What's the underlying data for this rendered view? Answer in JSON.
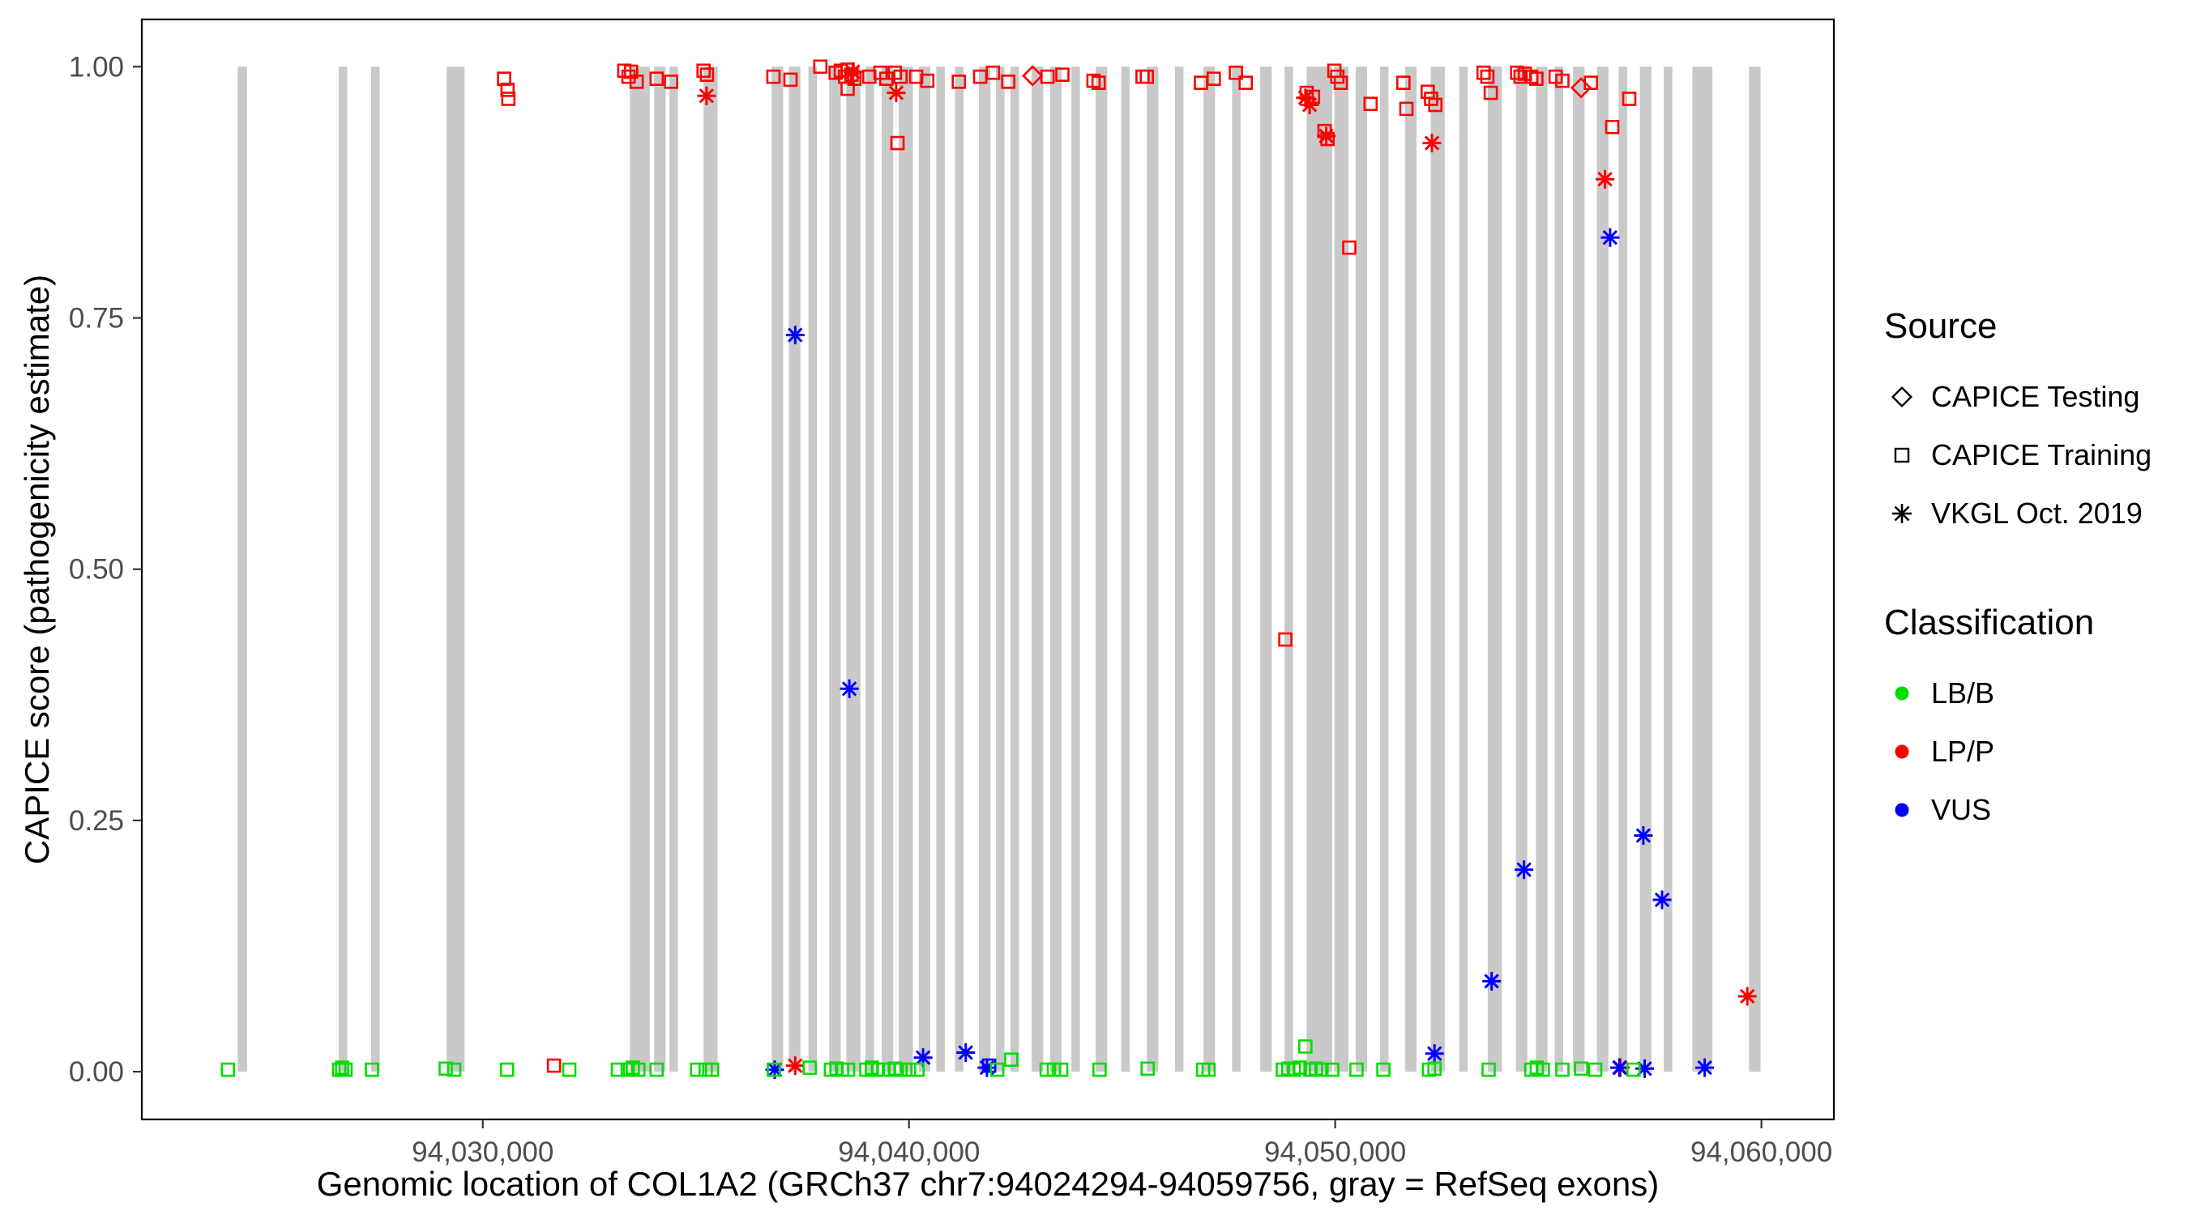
{
  "chart_data": {
    "type": "scatter",
    "title": "",
    "xlabel": "Genomic location of COL1A2 (GRCh37 chr7:94024294-94059756, gray = RefSeq exons)",
    "ylabel": "CAPICE score (pathogenicity estimate)",
    "x_domain": [
      94022000,
      94061700
    ],
    "y_domain": [
      -0.0475,
      1.047
    ],
    "x_ticks": [
      {
        "value": 94030000,
        "label": "94,030,000"
      },
      {
        "value": 94040000,
        "label": "94,040,000"
      },
      {
        "value": 94050000,
        "label": "94,050,000"
      },
      {
        "value": 94060000,
        "label": "94,060,000"
      }
    ],
    "y_ticks": [
      {
        "value": 0.0,
        "label": "0.00"
      },
      {
        "value": 0.25,
        "label": "0.25"
      },
      {
        "value": 0.5,
        "label": "0.50"
      },
      {
        "value": 0.75,
        "label": "0.75"
      },
      {
        "value": 1.0,
        "label": "1.00"
      }
    ],
    "grid": false,
    "legend_position": "right",
    "background": "#ffffff",
    "exon_color": "#c9c9c9",
    "classification_colors": {
      "LB/B": "#00dd00",
      "LP/P": "#ff0000",
      "VUS": "#0000ff"
    },
    "class_codes": {
      "B": "LB/B",
      "P": "LP/P",
      "U": "VUS"
    },
    "source_codes": {
      "T": "CAPICE Testing",
      "R": "CAPICE Training",
      "V": "VKGL Oct. 2019"
    },
    "source_shapes": {
      "CAPICE Testing": "diamond",
      "CAPICE Training": "square",
      "VKGL Oct. 2019": "asterisk"
    },
    "exons": [
      [
        94024250,
        220
      ],
      [
        94026620,
        200
      ],
      [
        94027380,
        200
      ],
      [
        94029150,
        420
      ],
      [
        94033450,
        470
      ],
      [
        94034020,
        270
      ],
      [
        94034380,
        200
      ],
      [
        94035180,
        330
      ],
      [
        94036780,
        270
      ],
      [
        94037180,
        270
      ],
      [
        94037640,
        200
      ],
      [
        94038130,
        270
      ],
      [
        94038530,
        330
      ],
      [
        94038980,
        200
      ],
      [
        94039360,
        270
      ],
      [
        94039760,
        330
      ],
      [
        94040230,
        270
      ],
      [
        94040640,
        200
      ],
      [
        94041080,
        200
      ],
      [
        94041640,
        270
      ],
      [
        94042040,
        200
      ],
      [
        94042380,
        200
      ],
      [
        94042880,
        270
      ],
      [
        94043310,
        270
      ],
      [
        94043810,
        200
      ],
      [
        94044380,
        270
      ],
      [
        94044980,
        200
      ],
      [
        94045580,
        270
      ],
      [
        94046240,
        200
      ],
      [
        94046910,
        270
      ],
      [
        94047580,
        200
      ],
      [
        94048240,
        270
      ],
      [
        94048810,
        200
      ],
      [
        94049330,
        600
      ],
      [
        94049980,
        330
      ],
      [
        94050480,
        270
      ],
      [
        94051050,
        200
      ],
      [
        94051640,
        270
      ],
      [
        94052240,
        330
      ],
      [
        94052910,
        200
      ],
      [
        94053580,
        330
      ],
      [
        94054240,
        270
      ],
      [
        94054710,
        270
      ],
      [
        94055150,
        200
      ],
      [
        94055580,
        270
      ],
      [
        94056140,
        270
      ],
      [
        94056650,
        200
      ],
      [
        94057150,
        270
      ],
      [
        94057710,
        200
      ],
      [
        94058380,
        470
      ],
      [
        94059710,
        270
      ]
    ],
    "points": [
      [
        94030500,
        0.988,
        "P",
        "R"
      ],
      [
        94030580,
        0.977,
        "P",
        "R"
      ],
      [
        94030600,
        0.968,
        "P",
        "R"
      ],
      [
        94033320,
        0.996,
        "P",
        "R"
      ],
      [
        94033420,
        0.99,
        "P",
        "R"
      ],
      [
        94033480,
        0.995,
        "P",
        "R"
      ],
      [
        94033610,
        0.985,
        "P",
        "R"
      ],
      [
        94034080,
        0.988,
        "P",
        "R"
      ],
      [
        94034420,
        0.985,
        "P",
        "R"
      ],
      [
        94035180,
        0.996,
        "P",
        "R"
      ],
      [
        94035260,
        0.992,
        "P",
        "R"
      ],
      [
        94036820,
        0.99,
        "P",
        "R"
      ],
      [
        94037220,
        0.987,
        "P",
        "R"
      ],
      [
        94037920,
        1.0,
        "P",
        "R"
      ],
      [
        94038280,
        0.994,
        "P",
        "R"
      ],
      [
        94038400,
        0.996,
        "P",
        "R"
      ],
      [
        94038500,
        0.99,
        "P",
        "R"
      ],
      [
        94038560,
        0.997,
        "P",
        "R"
      ],
      [
        94038650,
        0.992,
        "P",
        "R"
      ],
      [
        94038720,
        0.988,
        "P",
        "R"
      ],
      [
        94038560,
        0.978,
        "P",
        "R"
      ],
      [
        94039070,
        0.99,
        "P",
        "R"
      ],
      [
        94039330,
        0.994,
        "P",
        "R"
      ],
      [
        94039470,
        0.988,
        "P",
        "R"
      ],
      [
        94039670,
        0.994,
        "P",
        "R"
      ],
      [
        94039800,
        0.99,
        "P",
        "R"
      ],
      [
        94039730,
        0.924,
        "P",
        "R"
      ],
      [
        94040170,
        0.99,
        "P",
        "R"
      ],
      [
        94040430,
        0.986,
        "P",
        "R"
      ],
      [
        94041170,
        0.985,
        "P",
        "R"
      ],
      [
        94041670,
        0.99,
        "P",
        "R"
      ],
      [
        94041970,
        0.994,
        "P",
        "R"
      ],
      [
        94042330,
        0.985,
        "P",
        "R"
      ],
      [
        94043250,
        0.99,
        "P",
        "R"
      ],
      [
        94043600,
        0.992,
        "P",
        "R"
      ],
      [
        94044330,
        0.986,
        "P",
        "R"
      ],
      [
        94044450,
        0.984,
        "P",
        "R"
      ],
      [
        94045480,
        0.99,
        "P",
        "R"
      ],
      [
        94045580,
        0.99,
        "P",
        "R"
      ],
      [
        94046850,
        0.984,
        "P",
        "R"
      ],
      [
        94047150,
        0.988,
        "P",
        "R"
      ],
      [
        94047670,
        0.994,
        "P",
        "R"
      ],
      [
        94047900,
        0.984,
        "P",
        "R"
      ],
      [
        94048830,
        0.43,
        "P",
        "R"
      ],
      [
        94049330,
        0.974,
        "P",
        "R"
      ],
      [
        94049480,
        0.97,
        "P",
        "R"
      ],
      [
        94049750,
        0.936,
        "P",
        "R"
      ],
      [
        94049820,
        0.928,
        "P",
        "R"
      ],
      [
        94049980,
        0.996,
        "P",
        "R"
      ],
      [
        94050050,
        0.99,
        "P",
        "R"
      ],
      [
        94050130,
        0.984,
        "P",
        "R"
      ],
      [
        94050330,
        0.82,
        "P",
        "R"
      ],
      [
        94050830,
        0.963,
        "P",
        "R"
      ],
      [
        94051600,
        0.984,
        "P",
        "R"
      ],
      [
        94051670,
        0.958,
        "P",
        "R"
      ],
      [
        94052170,
        0.975,
        "P",
        "R"
      ],
      [
        94052250,
        0.968,
        "P",
        "R"
      ],
      [
        94052350,
        0.962,
        "P",
        "R"
      ],
      [
        94053480,
        0.994,
        "P",
        "R"
      ],
      [
        94053570,
        0.99,
        "P",
        "R"
      ],
      [
        94053650,
        0.974,
        "P",
        "R"
      ],
      [
        94054270,
        0.994,
        "P",
        "R"
      ],
      [
        94054350,
        0.99,
        "P",
        "R"
      ],
      [
        94054450,
        0.993,
        "P",
        "R"
      ],
      [
        94054600,
        0.99,
        "P",
        "R"
      ],
      [
        94054720,
        0.988,
        "P",
        "R"
      ],
      [
        94055170,
        0.99,
        "P",
        "R"
      ],
      [
        94055330,
        0.986,
        "P",
        "R"
      ],
      [
        94056000,
        0.984,
        "P",
        "R"
      ],
      [
        94056500,
        0.94,
        "P",
        "R"
      ],
      [
        94056900,
        0.968,
        "P",
        "R"
      ],
      [
        94031670,
        0.006,
        "P",
        "R"
      ],
      [
        94042900,
        0.991,
        "P",
        "T"
      ],
      [
        94055770,
        0.979,
        "P",
        "T"
      ],
      [
        94035250,
        0.971,
        "P",
        "V"
      ],
      [
        94038680,
        0.995,
        "P",
        "V"
      ],
      [
        94039700,
        0.974,
        "P",
        "V"
      ],
      [
        94049300,
        0.969,
        "P",
        "V"
      ],
      [
        94049400,
        0.962,
        "P",
        "V"
      ],
      [
        94049790,
        0.931,
        "P",
        "V"
      ],
      [
        94052270,
        0.924,
        "P",
        "V"
      ],
      [
        94056330,
        0.888,
        "P",
        "V"
      ],
      [
        94059670,
        0.075,
        "P",
        "V"
      ],
      [
        94037330,
        0.006,
        "P",
        "V"
      ],
      [
        94056690,
        0.004,
        "P",
        "V"
      ],
      [
        94037330,
        0.733,
        "U",
        "V"
      ],
      [
        94038600,
        0.381,
        "U",
        "V"
      ],
      [
        94040330,
        0.014,
        "U",
        "V"
      ],
      [
        94041330,
        0.019,
        "U",
        "V"
      ],
      [
        94041830,
        0.004,
        "U",
        "V"
      ],
      [
        94052330,
        0.018,
        "U",
        "V"
      ],
      [
        94053670,
        0.09,
        "U",
        "V"
      ],
      [
        94054430,
        0.201,
        "U",
        "V"
      ],
      [
        94056450,
        0.83,
        "U",
        "V"
      ],
      [
        94056670,
        0.004,
        "U",
        "V"
      ],
      [
        94057230,
        0.235,
        "U",
        "V"
      ],
      [
        94057260,
        0.003,
        "U",
        "V"
      ],
      [
        94057670,
        0.171,
        "U",
        "V"
      ],
      [
        94058670,
        0.004,
        "U",
        "V"
      ],
      [
        94036850,
        0.002,
        "U",
        "V"
      ],
      [
        94041880,
        0.006,
        "U",
        "R"
      ],
      [
        94024020,
        0.002,
        "B",
        "R"
      ],
      [
        94026630,
        0.002,
        "B",
        "R"
      ],
      [
        94026700,
        0.004,
        "B",
        "R"
      ],
      [
        94026780,
        0.002,
        "B",
        "R"
      ],
      [
        94027400,
        0.002,
        "B",
        "R"
      ],
      [
        94029130,
        0.003,
        "B",
        "R"
      ],
      [
        94029330,
        0.002,
        "B",
        "R"
      ],
      [
        94030570,
        0.002,
        "B",
        "R"
      ],
      [
        94032030,
        0.002,
        "B",
        "R"
      ],
      [
        94033170,
        0.002,
        "B",
        "R"
      ],
      [
        94033400,
        0.002,
        "B",
        "R"
      ],
      [
        94033520,
        0.004,
        "B",
        "R"
      ],
      [
        94033650,
        0.002,
        "B",
        "R"
      ],
      [
        94034080,
        0.002,
        "B",
        "R"
      ],
      [
        94035030,
        0.002,
        "B",
        "R"
      ],
      [
        94035230,
        0.002,
        "B",
        "R"
      ],
      [
        94035380,
        0.002,
        "B",
        "R"
      ],
      [
        94036830,
        0.002,
        "B",
        "R"
      ],
      [
        94037670,
        0.004,
        "B",
        "R"
      ],
      [
        94038170,
        0.002,
        "B",
        "R"
      ],
      [
        94038300,
        0.003,
        "B",
        "R"
      ],
      [
        94038430,
        0.002,
        "B",
        "R"
      ],
      [
        94038570,
        0.002,
        "B",
        "R"
      ],
      [
        94039000,
        0.002,
        "B",
        "R"
      ],
      [
        94039130,
        0.004,
        "B",
        "R"
      ],
      [
        94039270,
        0.002,
        "B",
        "R"
      ],
      [
        94039400,
        0.002,
        "B",
        "R"
      ],
      [
        94039530,
        0.002,
        "B",
        "R"
      ],
      [
        94039670,
        0.003,
        "B",
        "R"
      ],
      [
        94039800,
        0.002,
        "B",
        "R"
      ],
      [
        94040000,
        0.002,
        "B",
        "R"
      ],
      [
        94040200,
        0.002,
        "B",
        "R"
      ],
      [
        94042070,
        0.002,
        "B",
        "R"
      ],
      [
        94042400,
        0.012,
        "B",
        "R"
      ],
      [
        94043230,
        0.002,
        "B",
        "R"
      ],
      [
        94043400,
        0.002,
        "B",
        "R"
      ],
      [
        94043570,
        0.002,
        "B",
        "R"
      ],
      [
        94044470,
        0.002,
        "B",
        "R"
      ],
      [
        94045600,
        0.003,
        "B",
        "R"
      ],
      [
        94046900,
        0.002,
        "B",
        "R"
      ],
      [
        94047030,
        0.002,
        "B",
        "R"
      ],
      [
        94048770,
        0.002,
        "B",
        "R"
      ],
      [
        94048900,
        0.003,
        "B",
        "R"
      ],
      [
        94049030,
        0.002,
        "B",
        "R"
      ],
      [
        94049170,
        0.004,
        "B",
        "R"
      ],
      [
        94049300,
        0.025,
        "B",
        "R"
      ],
      [
        94049420,
        0.002,
        "B",
        "R"
      ],
      [
        94049550,
        0.003,
        "B",
        "R"
      ],
      [
        94049680,
        0.002,
        "B",
        "R"
      ],
      [
        94049930,
        0.002,
        "B",
        "R"
      ],
      [
        94050500,
        0.002,
        "B",
        "R"
      ],
      [
        94051130,
        0.002,
        "B",
        "R"
      ],
      [
        94052200,
        0.002,
        "B",
        "R"
      ],
      [
        94052330,
        0.003,
        "B",
        "R"
      ],
      [
        94053600,
        0.002,
        "B",
        "R"
      ],
      [
        94054600,
        0.002,
        "B",
        "R"
      ],
      [
        94054730,
        0.004,
        "B",
        "R"
      ],
      [
        94054870,
        0.002,
        "B",
        "R"
      ],
      [
        94055330,
        0.002,
        "B",
        "R"
      ],
      [
        94055770,
        0.003,
        "B",
        "R"
      ],
      [
        94056100,
        0.002,
        "B",
        "R"
      ],
      [
        94057000,
        0.002,
        "B",
        "R"
      ]
    ]
  },
  "legend": {
    "source": {
      "title": "Source",
      "items": [
        {
          "label": "CAPICE Testing",
          "shape": "diamond"
        },
        {
          "label": "CAPICE Training",
          "shape": "square"
        },
        {
          "label": "VKGL Oct. 2019",
          "shape": "asterisk"
        }
      ]
    },
    "classification": {
      "title": "Classification",
      "items": [
        {
          "label": "LB/B",
          "color": "#00dd00"
        },
        {
          "label": "LP/P",
          "color": "#ff0000"
        },
        {
          "label": "VUS",
          "color": "#0000ff"
        }
      ]
    }
  }
}
